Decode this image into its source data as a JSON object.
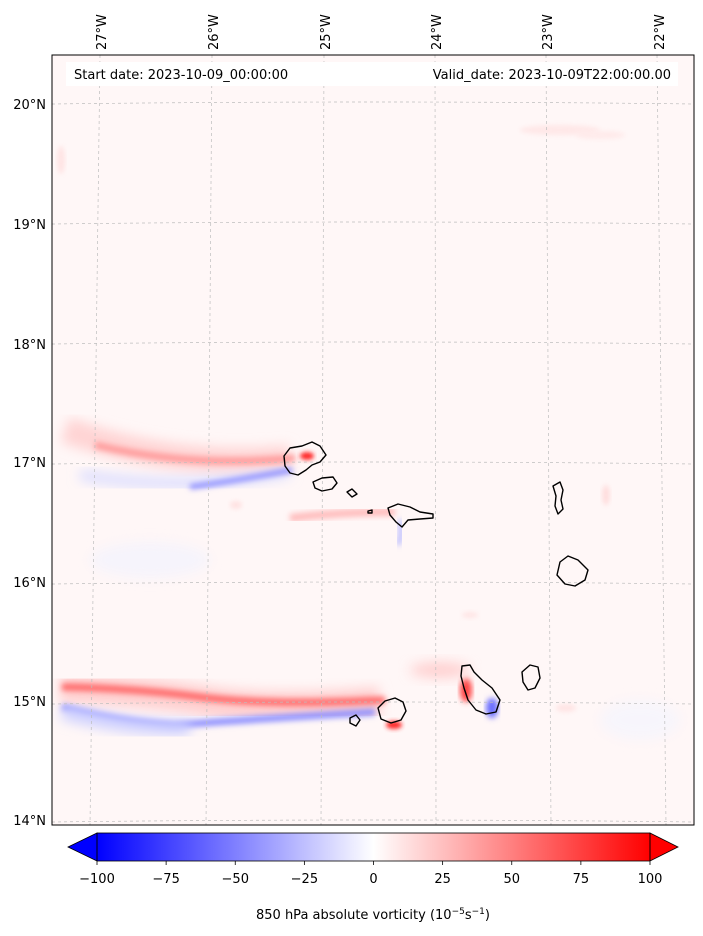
{
  "header": {
    "start_label": "Start date: 2023-10-09_00:00:00",
    "valid_label": "Valid_date: 2023-10-09T22:00:00.00"
  },
  "axes": {
    "lon_labels": [
      "27°W",
      "26°W",
      "25°W",
      "24°W",
      "23°W",
      "22°W"
    ],
    "lat_labels": [
      "20°N",
      "19°N",
      "18°N",
      "17°N",
      "16°N",
      "15°N",
      "14°N"
    ],
    "gridlines": "dashed"
  },
  "colorbar": {
    "label_main": "850 hPa absolute vorticity (10",
    "label_exp1": "−5",
    "label_mid": "s",
    "label_exp2": "−1",
    "label_end": ")",
    "ticks": [
      "−100",
      "−75",
      "−50",
      "−25",
      "0",
      "25",
      "50",
      "75",
      "100"
    ],
    "vmin": -100,
    "vmax": 100,
    "colormap": "bwr",
    "extend": "both",
    "color_min": "#0000ff",
    "color_mid": "#ffffff",
    "color_max": "#ff0000"
  },
  "map": {
    "projection": "lambert-conformal",
    "features": [
      "Cape Verde islands coastline",
      "vorticity wake streaks"
    ]
  }
}
